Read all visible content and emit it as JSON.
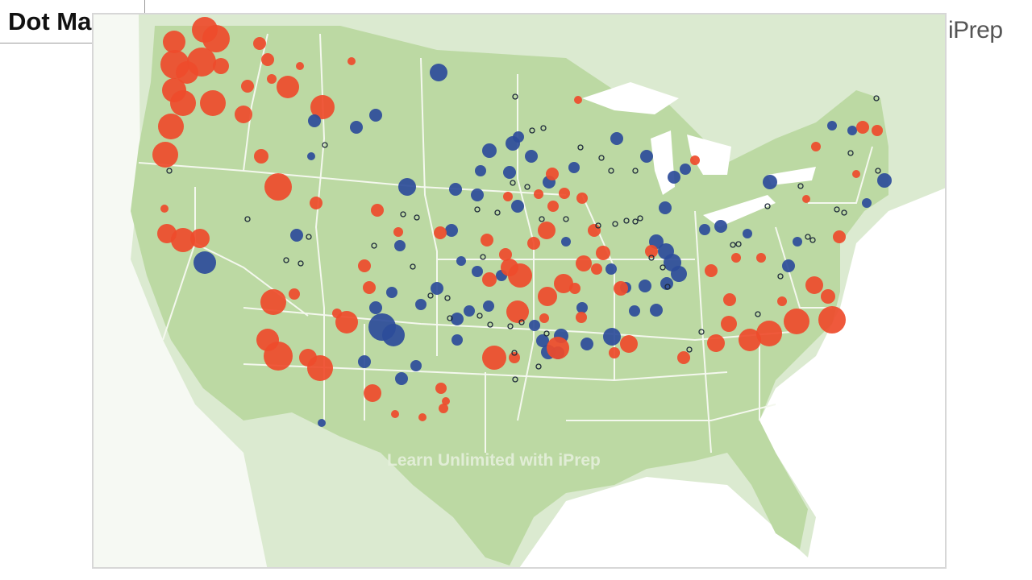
{
  "header": {
    "title": "Dot Maps"
  },
  "logo": {
    "text": "iPrep",
    "brand_colors": [
      "#1fa3e0",
      "#f2c500",
      "#6ab023"
    ]
  },
  "watermark": {
    "text": "Learn Unlimited with iPrep"
  },
  "map": {
    "land_color": "#bcd9a3",
    "water_color": "#ffffff",
    "border_color": "#f4f8ee",
    "legend": "none",
    "dot_colors": {
      "red": "#ee4b2b",
      "blue": "#2c4c9a",
      "outline": "#1e2a3a"
    }
  }
}
